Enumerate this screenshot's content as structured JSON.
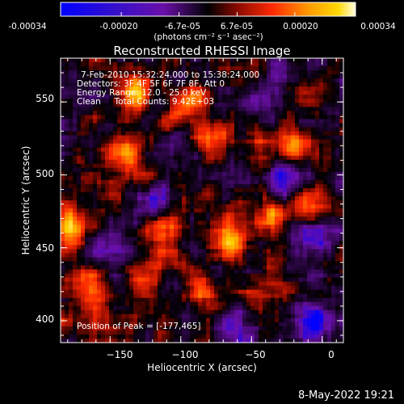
{
  "colorbar": {
    "tick_labels": [
      "-0.00034",
      "-0.00020",
      "-6.7e-05",
      "6.7e-05",
      "0.00020",
      "0.00034"
    ],
    "unit_label": "(photons cm⁻² s⁻¹ asec⁻²)",
    "range": [
      -0.00034,
      0.00034
    ]
  },
  "chart_data": {
    "type": "heatmap",
    "title": "Reconstructed RHESSI Image",
    "xlabel": "Heliocentric X (arcsec)",
    "ylabel": "Heliocentric Y (arcsec)",
    "xlim": [
      -185,
      15
    ],
    "ylim": [
      385,
      580
    ],
    "x_ticks": [
      -150,
      -100,
      -50,
      0
    ],
    "y_ticks": [
      400,
      450,
      500,
      550
    ],
    "x_tick_labels": [
      "−150",
      "−100",
      "−50",
      "0"
    ],
    "y_tick_labels": [
      "400",
      "450",
      "500",
      "550"
    ],
    "peak_position": [
      -177,
      465
    ],
    "colormap": [
      "#0000ff",
      "#6a0fa8",
      "#000000",
      "#8a0a00",
      "#ff2a00",
      "#ff8c00",
      "#ffd000",
      "#ffffe0"
    ],
    "info_lines": [
      "7-Feb-2010 15:32:24.000 to 15:38:24.000",
      "Detectors: 3F 4F 5F 6F 7F 8F, Att 0",
      "Energy Range: 12.0 - 25.0 keV",
      "Clean     Total Counts: 9.42E+03"
    ],
    "peak_label": "Position of Peak = [-177,465]",
    "hot_spots": [
      {
        "x": -177,
        "y": 465,
        "v": 1.0
      },
      {
        "x": -135,
        "y": 555,
        "v": 0.85
      },
      {
        "x": -140,
        "y": 515,
        "v": 0.8
      },
      {
        "x": -92,
        "y": 548,
        "v": 0.75
      },
      {
        "x": -75,
        "y": 525,
        "v": 0.55
      },
      {
        "x": -20,
        "y": 520,
        "v": 0.8
      },
      {
        "x": -110,
        "y": 460,
        "v": 0.65
      },
      {
        "x": -65,
        "y": 455,
        "v": 0.75
      },
      {
        "x": -35,
        "y": 470,
        "v": 0.6
      },
      {
        "x": -120,
        "y": 425,
        "v": 0.6
      },
      {
        "x": -85,
        "y": 418,
        "v": 0.7
      },
      {
        "x": -165,
        "y": 405,
        "v": 0.55
      },
      {
        "x": -168,
        "y": 430,
        "v": 0.5
      },
      {
        "x": -35,
        "y": 420,
        "v": 0.45
      },
      {
        "x": -10,
        "y": 470,
        "v": 0.5
      }
    ],
    "cold_spots": [
      {
        "x": -5,
        "y": 460,
        "v": -0.8
      },
      {
        "x": -5,
        "y": 400,
        "v": -0.75
      },
      {
        "x": -25,
        "y": 495,
        "v": -0.55
      },
      {
        "x": -150,
        "y": 450,
        "v": -0.5
      },
      {
        "x": -60,
        "y": 390,
        "v": -0.5
      },
      {
        "x": -120,
        "y": 480,
        "v": -0.4
      },
      {
        "x": -40,
        "y": 555,
        "v": -0.45
      }
    ]
  },
  "timestamp": "8-May-2022 19:21"
}
